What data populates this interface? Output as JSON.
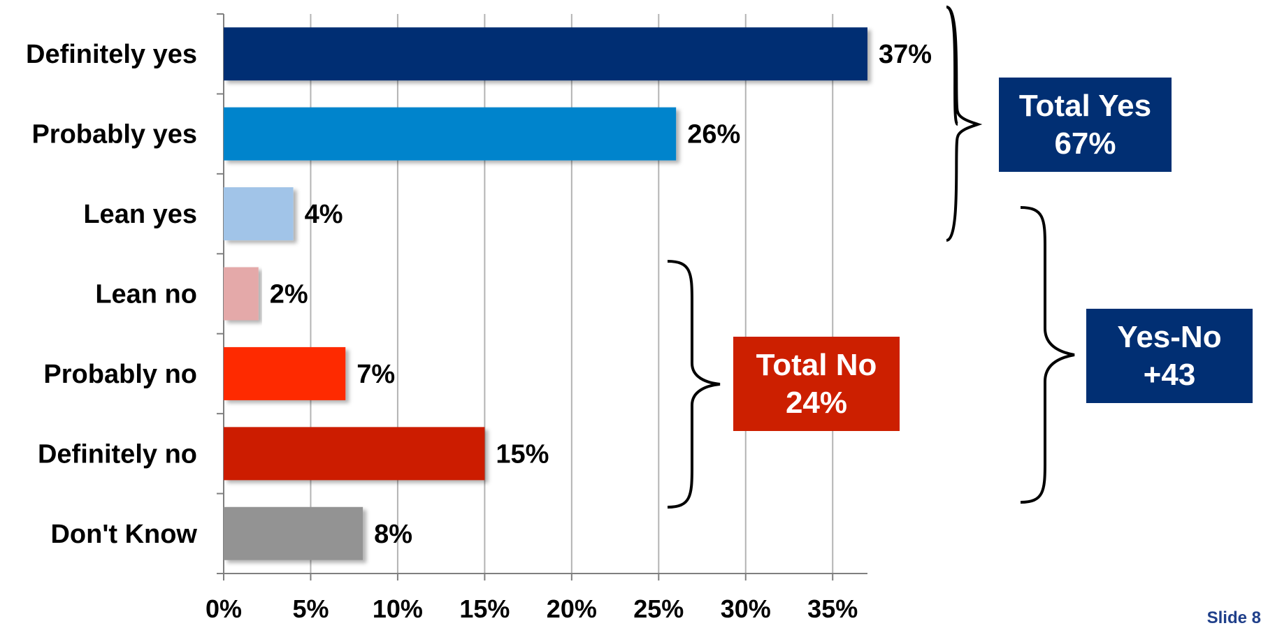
{
  "chart_data": {
    "type": "bar",
    "orientation": "horizontal",
    "categories": [
      "Definitely yes",
      "Probably yes",
      "Lean yes",
      "Lean no",
      "Probably no",
      "Definitely no",
      "Don't Know"
    ],
    "values": [
      37,
      26,
      4,
      2,
      7,
      15,
      8
    ],
    "value_labels": [
      "37%",
      "26%",
      "4%",
      "2%",
      "7%",
      "15%",
      "8%"
    ],
    "colors": [
      "#012f73",
      "#0084cc",
      "#a1c4e8",
      "#e4a9a9",
      "#fe2900",
      "#cc1f00",
      "#939393"
    ],
    "xlim": [
      0,
      37
    ],
    "xticks": [
      0,
      5,
      10,
      15,
      20,
      25,
      30,
      35
    ],
    "xtick_labels": [
      "0%",
      "5%",
      "10%",
      "15%",
      "20%",
      "25%",
      "30%",
      "35%"
    ],
    "grid": "vertical",
    "xlabel": "",
    "ylabel": "",
    "title": ""
  },
  "callouts": {
    "total_yes": {
      "line1": "Total Yes",
      "line2": "67%",
      "color": "#012f73"
    },
    "total_no": {
      "line1": "Total No",
      "line2": "24%",
      "color": "#cc1f00"
    },
    "yes_minus_no": {
      "line1": "Yes-No",
      "line2": "+43",
      "color": "#012f73"
    }
  },
  "footer": {
    "slide_label": "Slide 8"
  }
}
